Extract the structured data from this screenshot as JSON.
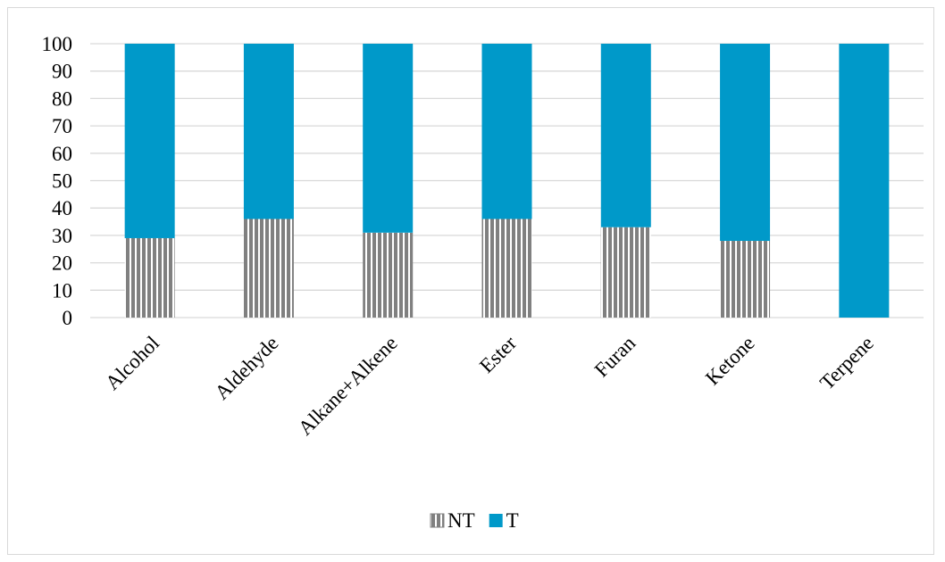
{
  "chart_data": {
    "type": "bar",
    "stacked": true,
    "categories": [
      "Alcohol",
      "Aldehyde",
      "Alkane+Alkene",
      "Ester",
      "Furan",
      "Ketone",
      "Terpene"
    ],
    "series": [
      {
        "name": "NT",
        "values": [
          29,
          36,
          31,
          36,
          33,
          28,
          0
        ],
        "color": "#808080",
        "pattern": "vertical-stripes"
      },
      {
        "name": "T",
        "values": [
          71,
          64,
          69,
          64,
          67,
          72,
          100
        ],
        "color": "#0099c9",
        "pattern": "solid"
      }
    ],
    "ylim": [
      0,
      100
    ],
    "yticks": [
      0,
      10,
      20,
      30,
      40,
      50,
      60,
      70,
      80,
      90,
      100
    ],
    "grid": true,
    "legend_position": "bottom",
    "title": "",
    "xlabel": "",
    "ylabel": ""
  }
}
